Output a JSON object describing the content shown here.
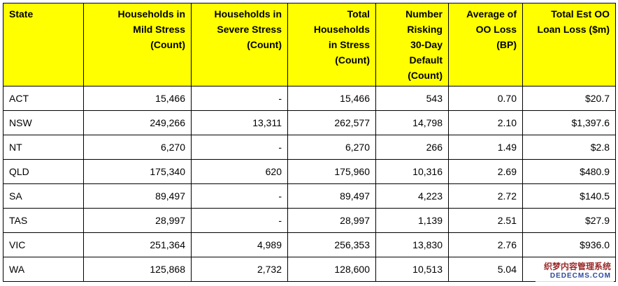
{
  "table": {
    "headers": [
      [
        "State"
      ],
      [
        "Households in",
        "Mild Stress",
        "(Count)"
      ],
      [
        "Households in",
        "Severe Stress",
        "(Count)"
      ],
      [
        "Total",
        "Households",
        "in Stress",
        "(Count)"
      ],
      [
        "Number",
        "Risking",
        "30-Day",
        "Default",
        "(Count)"
      ],
      [
        "Average of",
        "OO Loss",
        "(BP)"
      ],
      [
        "Total Est OO",
        "Loan Loss ($m)"
      ]
    ],
    "rows": [
      [
        "ACT",
        "15,466",
        "-",
        "15,466",
        "543",
        "0.70",
        "$20.7"
      ],
      [
        "NSW",
        "249,266",
        "13,311",
        "262,577",
        "14,798",
        "2.10",
        "$1,397.6"
      ],
      [
        "NT",
        "6,270",
        "-",
        "6,270",
        "266",
        "1.49",
        "$2.8"
      ],
      [
        "QLD",
        "175,340",
        "620",
        "175,960",
        "10,316",
        "2.69",
        "$480.9"
      ],
      [
        "SA",
        "89,497",
        "-",
        "89,497",
        "4,223",
        "2.72",
        "$140.5"
      ],
      [
        "TAS",
        "28,997",
        "-",
        "28,997",
        "1,139",
        "2.51",
        "$27.9"
      ],
      [
        "VIC",
        "251,364",
        "4,989",
        "256,353",
        "13,830",
        "2.76",
        "$936.0"
      ],
      [
        "WA",
        "125,868",
        "2,732",
        "128,600",
        "10,513",
        "5.04",
        ""
      ]
    ]
  },
  "watermark": {
    "line1": "织梦内容管理系统",
    "line2": "DEDECMS.COM"
  }
}
